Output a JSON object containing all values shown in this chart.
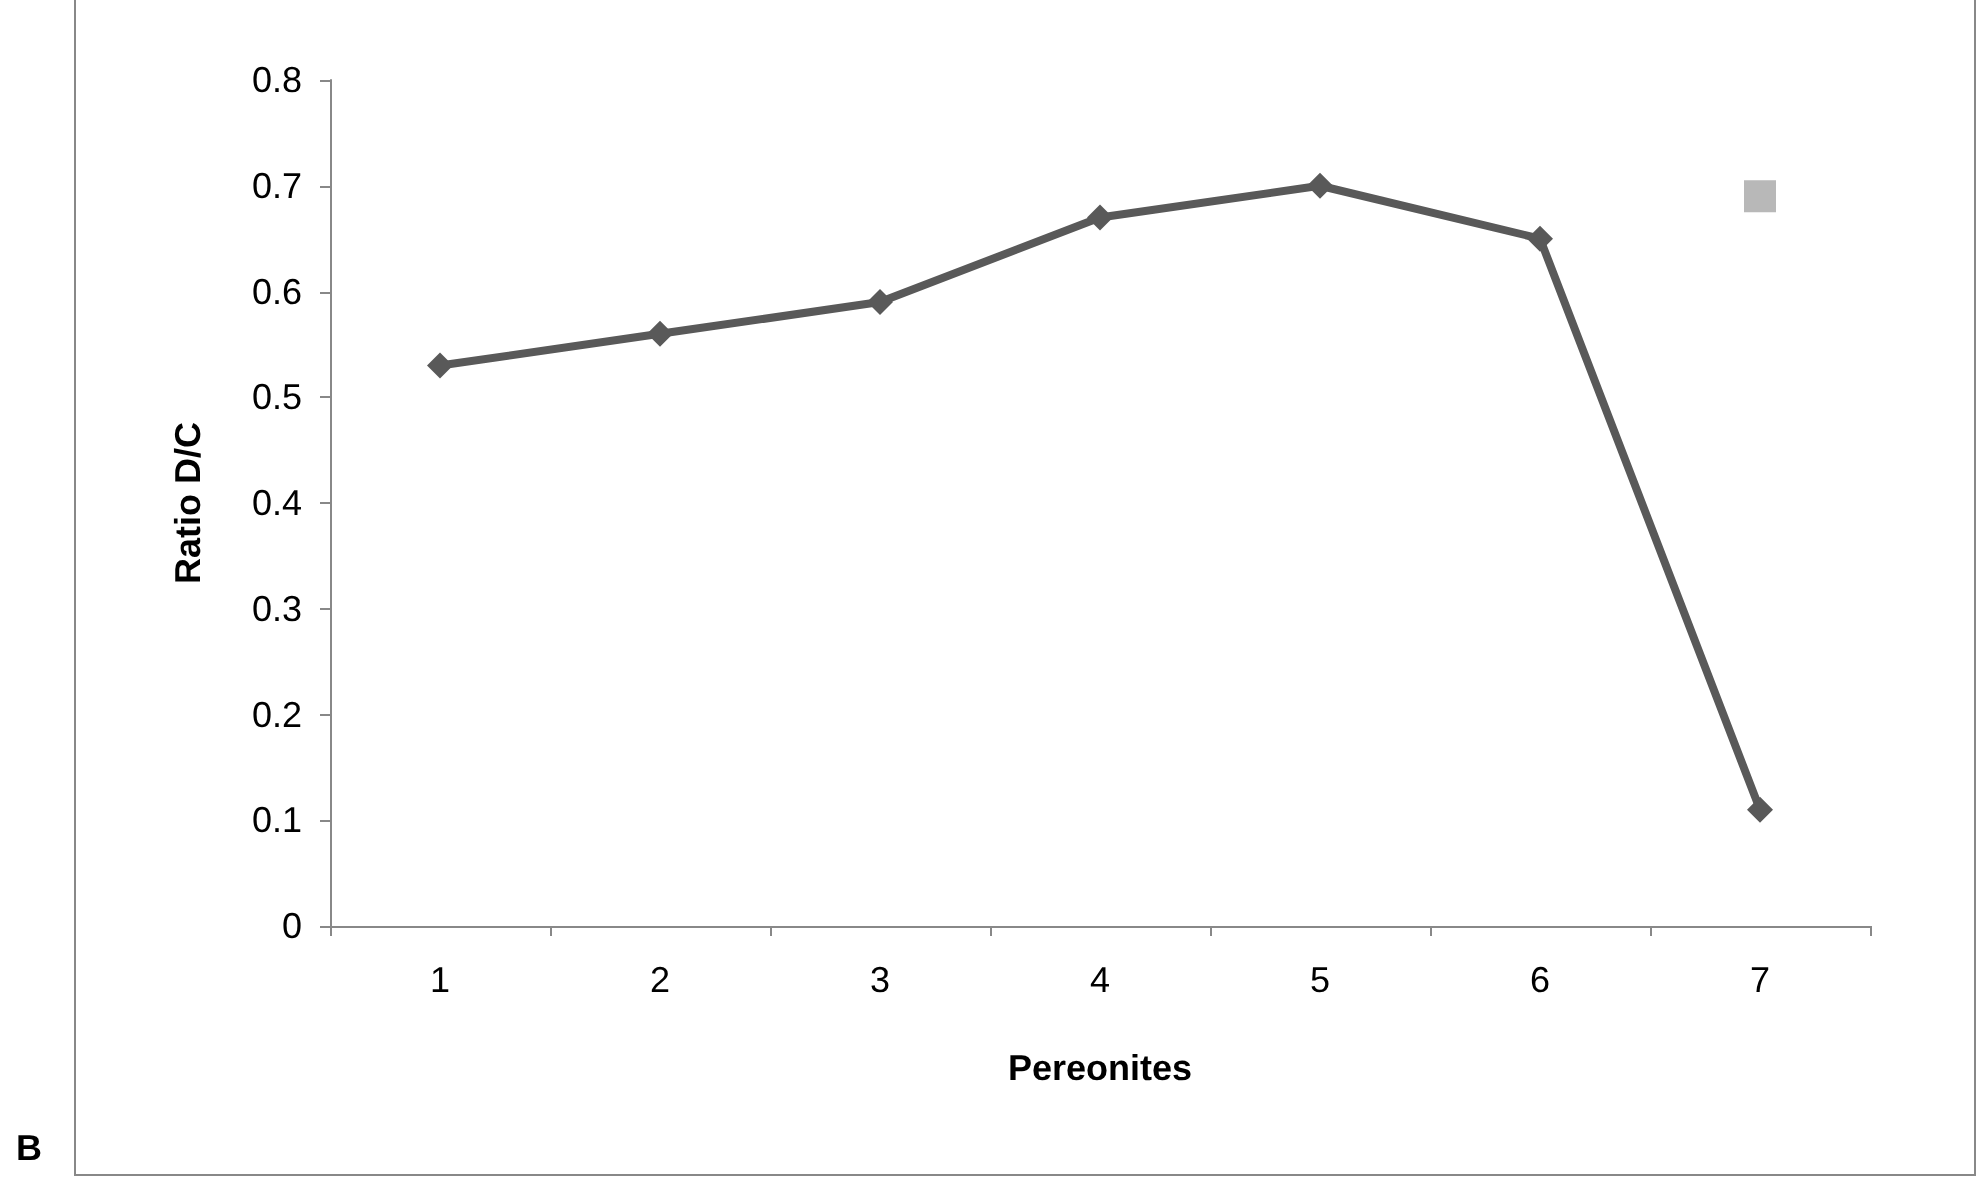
{
  "chart_data": {
    "type": "line",
    "xlabel": "Pereonites",
    "ylabel": "Ratio D/C",
    "annotations": [
      "B"
    ],
    "categories": [
      "1",
      "2",
      "3",
      "4",
      "5",
      "6",
      "7"
    ],
    "series": [
      {
        "color": "#595959",
        "values": [
          0.53,
          0.56,
          0.59,
          0.67,
          0.7,
          0.65,
          0.11
        ]
      },
      {
        "type": "scatter",
        "marker": "square",
        "color": "#a6a6a6",
        "values": [
          null,
          null,
          null,
          null,
          null,
          null,
          0.69
        ]
      }
    ],
    "ylim": [
      0,
      0.8
    ],
    "yticks": [
      0,
      0.1,
      0.2,
      0.3,
      0.4,
      0.5,
      0.6,
      0.7,
      0.8
    ],
    "grid": false,
    "marker": "diamond",
    "line_style": "solid"
  }
}
